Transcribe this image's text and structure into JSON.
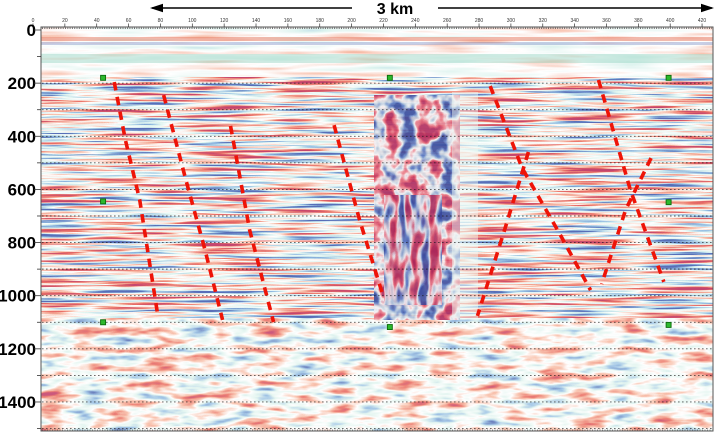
{
  "figure": {
    "kind": "seismic-reflection-section"
  },
  "chart_data": {
    "type": "heatmap",
    "subtype": "seismic-reflection-section-with-fault-interpretation",
    "title": "",
    "scale_bar": {
      "label": "3 km"
    },
    "x_axis": {
      "label": "",
      "unit": "trace",
      "ticks": [
        0,
        20,
        40,
        60,
        80,
        100,
        120,
        140,
        160,
        180,
        200,
        220,
        240,
        260,
        280,
        300,
        320,
        340,
        360,
        380,
        400,
        420
      ],
      "range": [
        0,
        428
      ]
    },
    "y_axis": {
      "label": "",
      "unit": "time/depth",
      "ticks": [
        0,
        200,
        400,
        600,
        800,
        1000,
        1200,
        1400
      ],
      "range": [
        0,
        1510
      ]
    },
    "grid": "dotted-horizontal-horizon-picks",
    "legend": "none",
    "horizon_lines_y": [
      200,
      300,
      400,
      500,
      600,
      700,
      800,
      900,
      1000,
      1100,
      1200,
      1300,
      1400,
      1500
    ],
    "horizon_markers": [
      [
        44,
        180
      ],
      [
        224,
        180
      ],
      [
        399,
        180
      ],
      [
        44,
        645
      ],
      [
        399,
        648
      ],
      [
        44,
        1100
      ],
      [
        224,
        1118
      ],
      [
        399,
        1110
      ]
    ],
    "faults": [
      {
        "id": "F1",
        "points": [
          [
            51,
            196
          ],
          [
            58,
            414
          ],
          [
            67,
            640
          ],
          [
            78,
            1061
          ]
        ]
      },
      {
        "id": "F2",
        "points": [
          [
            82,
            245
          ],
          [
            96,
            565
          ],
          [
            108,
            828
          ],
          [
            119,
            1091
          ]
        ]
      },
      {
        "id": "F3",
        "points": [
          [
            124,
            361
          ],
          [
            136,
            753
          ],
          [
            151,
            1099
          ]
        ]
      },
      {
        "id": "F4",
        "points": [
          [
            189,
            358
          ],
          [
            205,
            715
          ],
          [
            219,
            986
          ]
        ]
      },
      {
        "id": "F5",
        "points": [
          [
            287,
            211
          ],
          [
            307,
            519
          ],
          [
            331,
            771
          ],
          [
            350,
            979
          ]
        ]
      },
      {
        "id": "F6",
        "points": [
          [
            311,
            459
          ],
          [
            296,
            753
          ],
          [
            279,
            1076
          ]
        ]
      },
      {
        "id": "F7",
        "points": [
          [
            355,
            188
          ],
          [
            375,
            602
          ],
          [
            396,
            948
          ]
        ]
      },
      {
        "id": "F8",
        "points": [
          [
            388,
            482
          ],
          [
            372,
            677
          ],
          [
            357,
            956
          ]
        ]
      }
    ],
    "amplitude_zones": [
      {
        "name": "weak-shallow-band",
        "depth": [
          0,
          180
        ]
      },
      {
        "name": "strong-layered-reflections",
        "depth": [
          180,
          1090
        ]
      },
      {
        "name": "chaotic-disturbance-column",
        "traces": [
          210,
          268
        ],
        "depth": [
          250,
          1090
        ]
      },
      {
        "name": "speckled-low-coherence-deep",
        "depth": [
          1090,
          1510
        ]
      }
    ],
    "colors": {
      "fault_red": "#ee1408",
      "marker_green": "#2db92d",
      "marker_green_border": "#0b6b0b",
      "horizon_dot": "#1a1a1a",
      "axis_text": "#000000",
      "palette": [
        "#1a2973",
        "#4d85c7",
        "#b8e6da",
        "#ffffff",
        "#f08a68",
        "#d4251f",
        "#8c0f26"
      ]
    }
  }
}
